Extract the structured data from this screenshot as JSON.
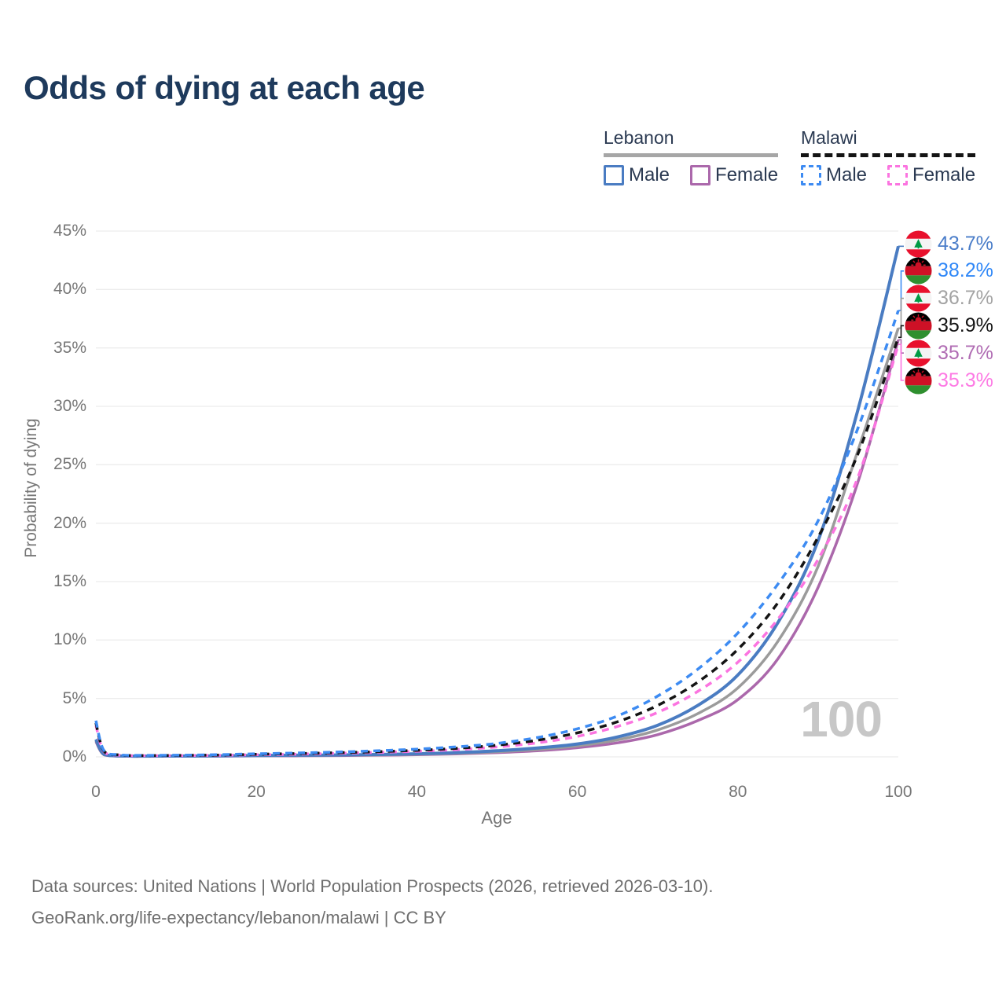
{
  "title": "Odds of dying at each age",
  "legend": {
    "lebanon": {
      "name": "Lebanon",
      "male": "Male",
      "female": "Female"
    },
    "malawi": {
      "name": "Malawi",
      "male": "Male",
      "female": "Female"
    }
  },
  "colors": {
    "lebanon_male": "#4a7cc2",
    "lebanon_female": "#ab68ab",
    "lebanon_both": "#9b9b9b",
    "malawi_male": "#3d8bf2",
    "malawi_female": "#fb74e0",
    "malawi_both": "#141414",
    "title_text": "#1e3a5c",
    "axis_text": "#767676",
    "gridline": "#ececec",
    "watermark_text": "#c7c7c7"
  },
  "watermark": "100",
  "footer": {
    "line1": "Data sources: United Nations | World Population Prospects (2026, retrieved 2026-03-10).",
    "line2": "GeoRank.org/life-expectancy/lebanon/malawi | CC BY"
  },
  "chart_data": {
    "type": "line",
    "title": "Odds of dying at each age",
    "xlabel": "Age",
    "ylabel": "Probability of dying",
    "xlim": [
      0,
      100
    ],
    "ylim": [
      0,
      45
    ],
    "xticks": [
      0,
      20,
      40,
      60,
      80,
      100
    ],
    "yticks": [
      {
        "value": 0,
        "label": "0%"
      },
      {
        "value": 5,
        "label": "5%"
      },
      {
        "value": 10,
        "label": "10%"
      },
      {
        "value": 15,
        "label": "15%"
      },
      {
        "value": 20,
        "label": "20%"
      },
      {
        "value": 25,
        "label": "25%"
      },
      {
        "value": 30,
        "label": "30%"
      },
      {
        "value": 35,
        "label": "35%"
      },
      {
        "value": 40,
        "label": "40%"
      },
      {
        "value": 45,
        "label": "45%"
      }
    ],
    "grid": "horizontal",
    "legend_position": "top-right",
    "series": [
      {
        "id": "lebanon-male",
        "country": "Lebanon",
        "sex": "Male",
        "color": "#4a7cc2",
        "label_color": "#4a7dc9",
        "dash": null,
        "width": 4,
        "flag": "lebanon",
        "end_value": 43.7,
        "end_label": "43.7%",
        "points": [
          [
            0,
            1.5
          ],
          [
            1,
            0.22
          ],
          [
            3,
            0.08
          ],
          [
            5,
            0.06
          ],
          [
            10,
            0.07
          ],
          [
            15,
            0.09
          ],
          [
            20,
            0.12
          ],
          [
            25,
            0.14
          ],
          [
            30,
            0.16
          ],
          [
            35,
            0.2
          ],
          [
            40,
            0.26
          ],
          [
            45,
            0.36
          ],
          [
            50,
            0.52
          ],
          [
            55,
            0.76
          ],
          [
            60,
            1.1
          ],
          [
            65,
            1.7
          ],
          [
            70,
            2.7
          ],
          [
            75,
            4.4
          ],
          [
            80,
            7.0
          ],
          [
            85,
            11.5
          ],
          [
            90,
            18.5
          ],
          [
            95,
            29.8
          ],
          [
            100,
            43.7
          ]
        ]
      },
      {
        "id": "malawi-male",
        "country": "Malawi",
        "sex": "Male",
        "color": "#3d8bf2",
        "label_color": "#2f87f7",
        "dash": "9 7",
        "width": 3.5,
        "flag": "malawi",
        "end_value": 38.2,
        "end_label": "38.2%",
        "points": [
          [
            0,
            3.1
          ],
          [
            1,
            0.55
          ],
          [
            3,
            0.18
          ],
          [
            5,
            0.13
          ],
          [
            10,
            0.14
          ],
          [
            15,
            0.18
          ],
          [
            20,
            0.26
          ],
          [
            25,
            0.33
          ],
          [
            30,
            0.41
          ],
          [
            35,
            0.52
          ],
          [
            40,
            0.66
          ],
          [
            45,
            0.86
          ],
          [
            50,
            1.15
          ],
          [
            55,
            1.65
          ],
          [
            60,
            2.4
          ],
          [
            65,
            3.5
          ],
          [
            70,
            5.2
          ],
          [
            75,
            7.5
          ],
          [
            80,
            10.6
          ],
          [
            85,
            14.8
          ],
          [
            90,
            20.2
          ],
          [
            95,
            28.2
          ],
          [
            100,
            38.2
          ]
        ]
      },
      {
        "id": "lebanon-both",
        "country": "Lebanon",
        "sex": "Both sexes",
        "color": "#9b9b9b",
        "label_color": "#a3a3a3",
        "dash": null,
        "width": 3.5,
        "flag": "lebanon",
        "end_value": 36.7,
        "end_label": "36.7%",
        "points": [
          [
            0,
            1.4
          ],
          [
            1,
            0.2
          ],
          [
            3,
            0.07
          ],
          [
            5,
            0.05
          ],
          [
            10,
            0.06
          ],
          [
            15,
            0.08
          ],
          [
            20,
            0.1
          ],
          [
            25,
            0.12
          ],
          [
            30,
            0.14
          ],
          [
            35,
            0.17
          ],
          [
            40,
            0.22
          ],
          [
            45,
            0.3
          ],
          [
            50,
            0.44
          ],
          [
            55,
            0.63
          ],
          [
            60,
            0.94
          ],
          [
            65,
            1.45
          ],
          [
            70,
            2.3
          ],
          [
            75,
            3.7
          ],
          [
            80,
            5.9
          ],
          [
            85,
            9.9
          ],
          [
            90,
            16.3
          ],
          [
            95,
            26.3
          ],
          [
            100,
            36.7
          ]
        ]
      },
      {
        "id": "malawi-both",
        "country": "Malawi",
        "sex": "Both sexes",
        "color": "#141414",
        "label_color": "#141414",
        "dash": "9 7",
        "width": 3.5,
        "flag": "malawi",
        "end_value": 35.9,
        "end_label": "35.9%",
        "points": [
          [
            0,
            2.9
          ],
          [
            1,
            0.5
          ],
          [
            3,
            0.16
          ],
          [
            5,
            0.11
          ],
          [
            10,
            0.12
          ],
          [
            15,
            0.15
          ],
          [
            20,
            0.22
          ],
          [
            25,
            0.28
          ],
          [
            30,
            0.35
          ],
          [
            35,
            0.44
          ],
          [
            40,
            0.56
          ],
          [
            45,
            0.73
          ],
          [
            50,
            1.0
          ],
          [
            55,
            1.42
          ],
          [
            60,
            2.05
          ],
          [
            65,
            3.0
          ],
          [
            70,
            4.4
          ],
          [
            75,
            6.4
          ],
          [
            80,
            9.2
          ],
          [
            85,
            13.2
          ],
          [
            90,
            18.8
          ],
          [
            95,
            26.0
          ],
          [
            100,
            35.9
          ]
        ]
      },
      {
        "id": "lebanon-female",
        "country": "Lebanon",
        "sex": "Female",
        "color": "#ab68ab",
        "label_color": "#b06cb3",
        "dash": null,
        "width": 3.5,
        "flag": "lebanon",
        "end_value": 35.7,
        "end_label": "35.7%",
        "points": [
          [
            0,
            1.3
          ],
          [
            1,
            0.18
          ],
          [
            3,
            0.06
          ],
          [
            5,
            0.04
          ],
          [
            10,
            0.05
          ],
          [
            15,
            0.06
          ],
          [
            20,
            0.08
          ],
          [
            25,
            0.09
          ],
          [
            30,
            0.11
          ],
          [
            35,
            0.14
          ],
          [
            40,
            0.18
          ],
          [
            45,
            0.25
          ],
          [
            50,
            0.36
          ],
          [
            55,
            0.52
          ],
          [
            60,
            0.78
          ],
          [
            65,
            1.2
          ],
          [
            70,
            1.9
          ],
          [
            75,
            3.1
          ],
          [
            80,
            4.9
          ],
          [
            85,
            8.4
          ],
          [
            90,
            14.5
          ],
          [
            95,
            23.6
          ],
          [
            100,
            35.7
          ]
        ]
      },
      {
        "id": "malawi-female",
        "country": "Malawi",
        "sex": "Female",
        "color": "#fb74e0",
        "label_color": "#fd7ae4",
        "dash": "9 7",
        "width": 3.5,
        "flag": "malawi",
        "end_value": 35.3,
        "end_label": "35.3%",
        "points": [
          [
            0,
            2.7
          ],
          [
            1,
            0.45
          ],
          [
            3,
            0.14
          ],
          [
            5,
            0.1
          ],
          [
            10,
            0.11
          ],
          [
            15,
            0.13
          ],
          [
            20,
            0.18
          ],
          [
            25,
            0.23
          ],
          [
            30,
            0.3
          ],
          [
            35,
            0.38
          ],
          [
            40,
            0.48
          ],
          [
            45,
            0.62
          ],
          [
            50,
            0.85
          ],
          [
            55,
            1.2
          ],
          [
            60,
            1.75
          ],
          [
            65,
            2.6
          ],
          [
            70,
            3.8
          ],
          [
            75,
            5.6
          ],
          [
            80,
            8.1
          ],
          [
            85,
            11.8
          ],
          [
            90,
            16.9
          ],
          [
            95,
            24.0
          ],
          [
            100,
            35.3
          ]
        ]
      }
    ]
  }
}
